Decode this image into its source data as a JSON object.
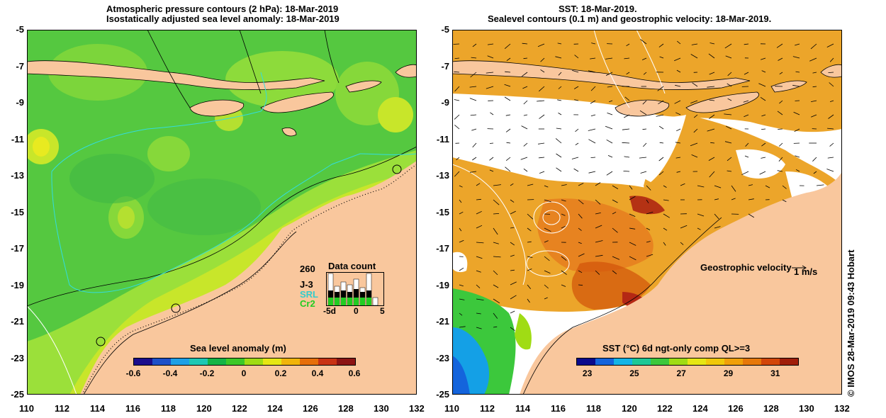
{
  "left_panel": {
    "title_line1": "Atmospheric pressure contours (2 hPa): 18-Mar-2019",
    "title_line2": "Isostatically adjusted sea level anomaly: 18-Mar-2019",
    "colorbar": {
      "title": "Sea level anomaly (m)",
      "ticks": [
        "-0.6",
        "-0.4",
        "-0.2",
        "0",
        "0.2",
        "0.4",
        "0.6"
      ],
      "colors": [
        "#1a0d8c",
        "#1e50c8",
        "#1ea0e6",
        "#1ec8b4",
        "#14b446",
        "#3cc828",
        "#a0dc14",
        "#e6e614",
        "#f0b40a",
        "#e66e0a",
        "#c83214",
        "#8c1414"
      ]
    },
    "data_count": {
      "title": "Data count",
      "max_label": "260",
      "satellites": [
        {
          "name": "J-3",
          "color": "#000000"
        },
        {
          "name": "SRL",
          "color": "#33cccc"
        },
        {
          "name": "Cr2",
          "color": "#22cc22"
        }
      ],
      "axis_labels": [
        "-5d",
        "0",
        "5"
      ]
    }
  },
  "right_panel": {
    "title_line1": "SST: 18-Mar-2019.",
    "title_line2": "Sealevel contours (0.1 m) and geostrophic velocity: 18-Mar-2019.",
    "velocity_legend": "Geostrophic velocity",
    "velocity_scale": "1 m/s",
    "colorbar": {
      "title": "SST (°C) 6d ngt-only comp QL>=3",
      "ticks": [
        "23",
        "25",
        "27",
        "29",
        "31"
      ],
      "colors": [
        "#0a0a8c",
        "#1464dc",
        "#14b4e6",
        "#1ec896",
        "#3cc83c",
        "#a0dc14",
        "#e6e614",
        "#f0c80a",
        "#f0a00a",
        "#e6780a",
        "#d2460a",
        "#a01e0a"
      ]
    }
  },
  "axes": {
    "x_ticks": [
      "110",
      "112",
      "114",
      "116",
      "118",
      "120",
      "122",
      "124",
      "126",
      "128",
      "130",
      "132"
    ],
    "y_ticks": [
      "-5",
      "-7",
      "-9",
      "-11",
      "-13",
      "-15",
      "-17",
      "-19",
      "-21",
      "-23",
      "-25"
    ]
  },
  "credit": "© IMOS 28-Mar-2019 09:43 Hobart",
  "colors": {
    "land": "#f9c79d",
    "sea_green": "#5ccf44",
    "sea_light": "#9be03a",
    "sst_orange": "#eca52a",
    "sst_gap": "#ffffff"
  }
}
